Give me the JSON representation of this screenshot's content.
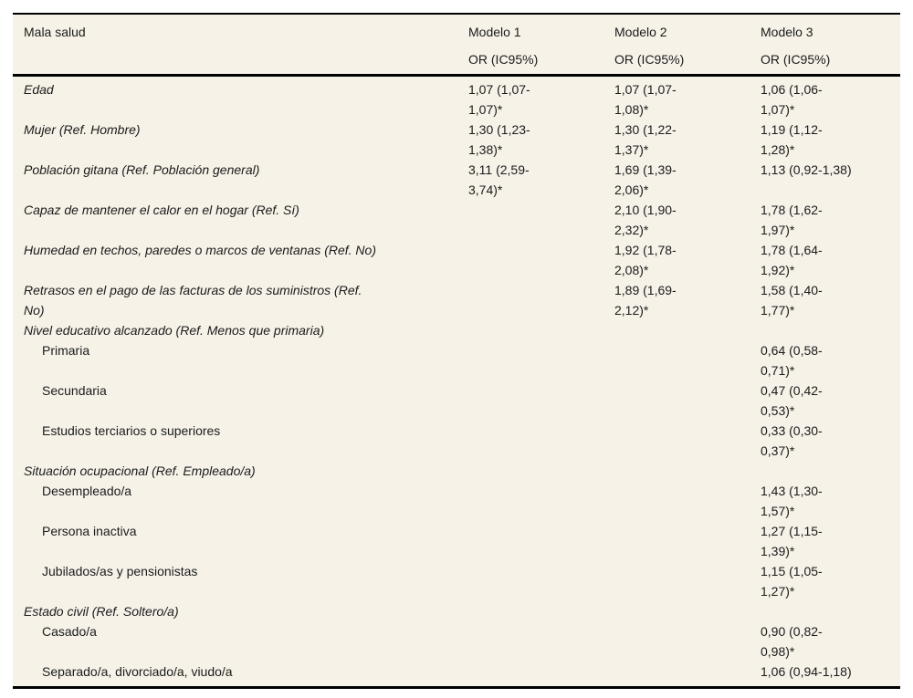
{
  "colors": {
    "page_background": "#ffffff",
    "table_background": "#f6f2e8",
    "rule": "#000000",
    "text": "#1b1b1b"
  },
  "table": {
    "header": {
      "outcome": "Mala salud",
      "models": [
        {
          "name": "Modelo 1",
          "sub": "OR (IC95%)"
        },
        {
          "name": "Modelo 2",
          "sub": "OR (IC95%)"
        },
        {
          "name": "Modelo 3",
          "sub": "OR (IC95%)"
        }
      ]
    },
    "rows": [
      {
        "label": "Edad",
        "italic": true,
        "indent": false,
        "m1": "1,07 (1,07-\n1,07)*",
        "m2": "1,07 (1,07-\n1,08)*",
        "m3": "1,06 (1,06-\n1,07)*"
      },
      {
        "label": "Mujer (Ref. Hombre)",
        "italic": true,
        "indent": false,
        "m1": "1,30 (1,23-\n1,38)*",
        "m2": "1,30 (1,22-\n1,37)*",
        "m3": "1,19 (1,12-\n1,28)*"
      },
      {
        "label": "Población gitana (Ref. Población general)",
        "italic": true,
        "indent": false,
        "m1": "3,11 (2,59-\n3,74)*",
        "m2": "1,69 (1,39-\n2,06)*",
        "m3": "1,13 (0,92-1,38)"
      },
      {
        "label": "Capaz de mantener el calor en el hogar (Ref. Sí)",
        "italic": true,
        "indent": false,
        "m1": "",
        "m2": "2,10 (1,90-\n2,32)*",
        "m3": "1,78 (1,62-\n1,97)*"
      },
      {
        "label": "Humedad en techos, paredes o marcos de ventanas (Ref. No)",
        "italic": true,
        "indent": false,
        "m1": "",
        "m2": "1,92 (1,78-\n2,08)*",
        "m3": "1,78 (1,64-\n1,92)*"
      },
      {
        "label": "Retrasos en el pago de las facturas de los suministros (Ref.\nNo)",
        "italic": true,
        "indent": false,
        "m1": "",
        "m2": "1,89 (1,69-\n2,12)*",
        "m3": "1,58 (1,40-\n1,77)*"
      },
      {
        "label": "Nivel educativo alcanzado (Ref. Menos que primaria)",
        "italic": true,
        "indent": false,
        "m1": "",
        "m2": "",
        "m3": ""
      },
      {
        "label": "Primaria",
        "italic": false,
        "indent": true,
        "m1": "",
        "m2": "",
        "m3": "0,64 (0,58-\n0,71)*"
      },
      {
        "label": "Secundaria",
        "italic": false,
        "indent": true,
        "m1": "",
        "m2": "",
        "m3": "0,47 (0,42-\n0,53)*"
      },
      {
        "label": "Estudios terciarios o superiores",
        "italic": false,
        "indent": true,
        "m1": "",
        "m2": "",
        "m3": "0,33 (0,30-\n0,37)*"
      },
      {
        "label": "Situación ocupacional (Ref. Empleado/a)",
        "italic": true,
        "indent": false,
        "m1": "",
        "m2": "",
        "m3": ""
      },
      {
        "label": "Desempleado/a",
        "italic": false,
        "indent": true,
        "m1": "",
        "m2": "",
        "m3": "1,43 (1,30-\n1,57)*"
      },
      {
        "label": "Persona inactiva",
        "italic": false,
        "indent": true,
        "m1": "",
        "m2": "",
        "m3": "1,27 (1,15-\n1,39)*"
      },
      {
        "label": "Jubilados/as y pensionistas",
        "italic": false,
        "indent": true,
        "m1": "",
        "m2": "",
        "m3": "1,15 (1,05-\n1,27)*"
      },
      {
        "label": "Estado civil (Ref. Soltero/a)",
        "italic": true,
        "indent": false,
        "m1": "",
        "m2": "",
        "m3": ""
      },
      {
        "label": "Casado/a",
        "italic": false,
        "indent": true,
        "m1": "",
        "m2": "",
        "m3": "0,90 (0,82-\n0,98)*"
      },
      {
        "label": "Separado/a, divorciado/a, viudo/a",
        "italic": false,
        "indent": true,
        "m1": "",
        "m2": "",
        "m3": "1,06 (0,94-1,18)"
      }
    ]
  }
}
